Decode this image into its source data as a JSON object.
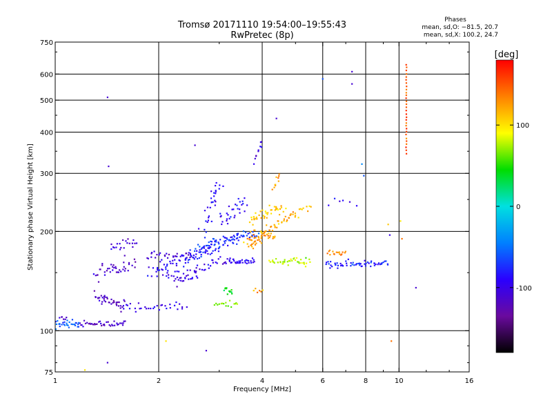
{
  "chart_data": {
    "type": "scatter",
    "title": "Tromsø 20171110 19:54:00–19:55:43",
    "subtitle": "RwPretec (8p)",
    "xlabel": "Frequency [MHz]",
    "ylabel": "Stationary phase Virtual Height [km]",
    "xscale": "log",
    "yscale": "log",
    "xlim": [
      1,
      16
    ],
    "ylim": [
      75,
      750
    ],
    "xticks": [
      1,
      2,
      4,
      6,
      8,
      10,
      16
    ],
    "yticks": [
      75,
      100,
      200,
      300,
      400,
      500,
      600,
      750
    ],
    "x_gridlines": [
      2,
      4,
      6,
      8,
      10
    ],
    "y_gridlines": [
      100,
      200,
      300,
      400,
      500,
      600
    ],
    "phases_box": {
      "title": "Phases",
      "line1": "mean, sd,O: −81.5, 20.7",
      "line2": "mean, sd,X: 100.2, 24.7"
    },
    "colorbar": {
      "label": "[deg]",
      "min": -180,
      "max": 180,
      "ticks": [
        100,
        0,
        -100
      ],
      "colormap": [
        "#000000",
        "#6a0a9e",
        "#2a00ff",
        "#0080ff",
        "#00e0e0",
        "#00dd00",
        "#ffff00",
        "#ff8000",
        "#ff0000"
      ]
    },
    "series": [
      {
        "f": 1.0,
        "f2": 1.18,
        "h": 105,
        "h2": 105,
        "n": 30,
        "phase": -60,
        "sp": 0.03
      },
      {
        "f": 1.18,
        "f2": 1.6,
        "h": 105,
        "h2": 105,
        "n": 40,
        "phase": -115,
        "sp": 0.02
      },
      {
        "f": 1.03,
        "f2": 1.08,
        "h": 110,
        "h2": 110,
        "n": 6,
        "phase": -110,
        "sp": 0.02
      },
      {
        "f": 1.3,
        "f2": 1.6,
        "h": 128,
        "h2": 118,
        "n": 40,
        "phase": -115,
        "sp": 0.05
      },
      {
        "f": 1.3,
        "f2": 1.7,
        "h": 145,
        "h2": 160,
        "n": 40,
        "phase": -110,
        "sp": 0.07
      },
      {
        "f": 1.45,
        "f2": 1.72,
        "h": 178,
        "h2": 185,
        "n": 20,
        "phase": -105,
        "sp": 0.04
      },
      {
        "f": 1.6,
        "f2": 2.4,
        "h": 118,
        "h2": 118,
        "n": 30,
        "phase": -100,
        "sp": 0.03
      },
      {
        "f": 1.85,
        "f2": 2.5,
        "h": 170,
        "h2": 168,
        "n": 30,
        "phase": -110,
        "sp": 0.04
      },
      {
        "f": 1.85,
        "f2": 2.6,
        "h": 150,
        "h2": 148,
        "n": 30,
        "phase": -95,
        "sp": 0.05
      },
      {
        "f": 2.0,
        "f2": 2.9,
        "h": 155,
        "h2": 180,
        "n": 50,
        "phase": -90,
        "sp": 0.05
      },
      {
        "f": 2.2,
        "f2": 3.2,
        "h": 140,
        "h2": 165,
        "n": 40,
        "phase": -100,
        "sp": 0.05
      },
      {
        "f": 2.4,
        "f2": 3.5,
        "h": 165,
        "h2": 195,
        "n": 50,
        "phase": -80,
        "sp": 0.05
      },
      {
        "f": 2.6,
        "f2": 3.9,
        "h": 180,
        "h2": 200,
        "n": 50,
        "phase": -70,
        "sp": 0.05
      },
      {
        "f": 2.7,
        "f2": 3.0,
        "h": 210,
        "h2": 280,
        "n": 30,
        "phase": -90,
        "sp": 0.08
      },
      {
        "f": 3.0,
        "f2": 3.6,
        "h": 215,
        "h2": 250,
        "n": 30,
        "phase": -90,
        "sp": 0.07
      },
      {
        "f": 3.2,
        "f2": 3.8,
        "h": 162,
        "h2": 162,
        "n": 30,
        "phase": -90,
        "sp": 0.02
      },
      {
        "f": 3.1,
        "f2": 3.3,
        "h": 133,
        "h2": 130,
        "n": 12,
        "phase": 40,
        "sp": 0.03
      },
      {
        "f": 2.9,
        "f2": 3.4,
        "h": 121,
        "h2": 121,
        "n": 16,
        "phase": 65,
        "sp": 0.02
      },
      {
        "f": 3.6,
        "f2": 4.3,
        "h": 185,
        "h2": 200,
        "n": 60,
        "phase": 125,
        "sp": 0.06
      },
      {
        "f": 3.7,
        "f2": 4.6,
        "h": 215,
        "h2": 240,
        "n": 40,
        "phase": 110,
        "sp": 0.05
      },
      {
        "f": 4.3,
        "f2": 5.0,
        "h": 210,
        "h2": 225,
        "n": 25,
        "phase": 120,
        "sp": 0.04
      },
      {
        "f": 4.3,
        "f2": 4.5,
        "h": 270,
        "h2": 295,
        "n": 10,
        "phase": 130,
        "sp": 0.03
      },
      {
        "f": 3.8,
        "f2": 4.0,
        "h": 325,
        "h2": 380,
        "n": 10,
        "phase": -100,
        "sp": 0.03
      },
      {
        "f": 4.2,
        "f2": 5.5,
        "h": 162,
        "h2": 162,
        "n": 40,
        "phase": 80,
        "sp": 0.03
      },
      {
        "f": 3.8,
        "f2": 4.0,
        "h": 132,
        "h2": 132,
        "n": 6,
        "phase": 120,
        "sp": 0.02
      },
      {
        "f": 6.1,
        "f2": 9.3,
        "h": 160,
        "h2": 160,
        "n": 60,
        "phase": -80,
        "sp": 0.03
      },
      {
        "f": 6.2,
        "f2": 7.0,
        "h": 172,
        "h2": 172,
        "n": 16,
        "phase": 130,
        "sp": 0.02
      },
      {
        "f": 6.2,
        "f2": 7.5,
        "h": 245,
        "h2": 245,
        "n": 6,
        "phase": -100,
        "sp": 0.03
      },
      {
        "f": 10.5,
        "f2": 10.5,
        "h": 345,
        "h2": 640,
        "n": 30,
        "phase": 150,
        "sp": 0.005
      },
      {
        "f": 5.0,
        "f2": 5.6,
        "h": 225,
        "h2": 240,
        "n": 10,
        "phase": 110,
        "sp": 0.04
      }
    ],
    "isolated_points": [
      {
        "x": 1.42,
        "y": 510,
        "phase": -110
      },
      {
        "x": 1.43,
        "y": 315,
        "phase": -110
      },
      {
        "x": 1.42,
        "y": 80,
        "phase": -110
      },
      {
        "x": 2.55,
        "y": 365,
        "phase": -110
      },
      {
        "x": 2.75,
        "y": 87,
        "phase": -110
      },
      {
        "x": 4.4,
        "y": 440,
        "phase": -110
      },
      {
        "x": 6.0,
        "y": 580,
        "phase": -60
      },
      {
        "x": 7.3,
        "y": 610,
        "phase": -110
      },
      {
        "x": 7.3,
        "y": 560,
        "phase": -110
      },
      {
        "x": 9.5,
        "y": 93,
        "phase": 140
      },
      {
        "x": 11.2,
        "y": 135,
        "phase": -110
      },
      {
        "x": 2.1,
        "y": 93,
        "phase": 100
      },
      {
        "x": 1.22,
        "y": 76,
        "phase": 100
      },
      {
        "x": 7.8,
        "y": 320,
        "phase": -40
      },
      {
        "x": 7.9,
        "y": 295,
        "phase": -60
      },
      {
        "x": 9.3,
        "y": 210,
        "phase": 110
      },
      {
        "x": 9.4,
        "y": 195,
        "phase": -100
      },
      {
        "x": 10.2,
        "y": 190,
        "phase": 140
      },
      {
        "x": 10.1,
        "y": 215,
        "phase": 100
      }
    ]
  }
}
